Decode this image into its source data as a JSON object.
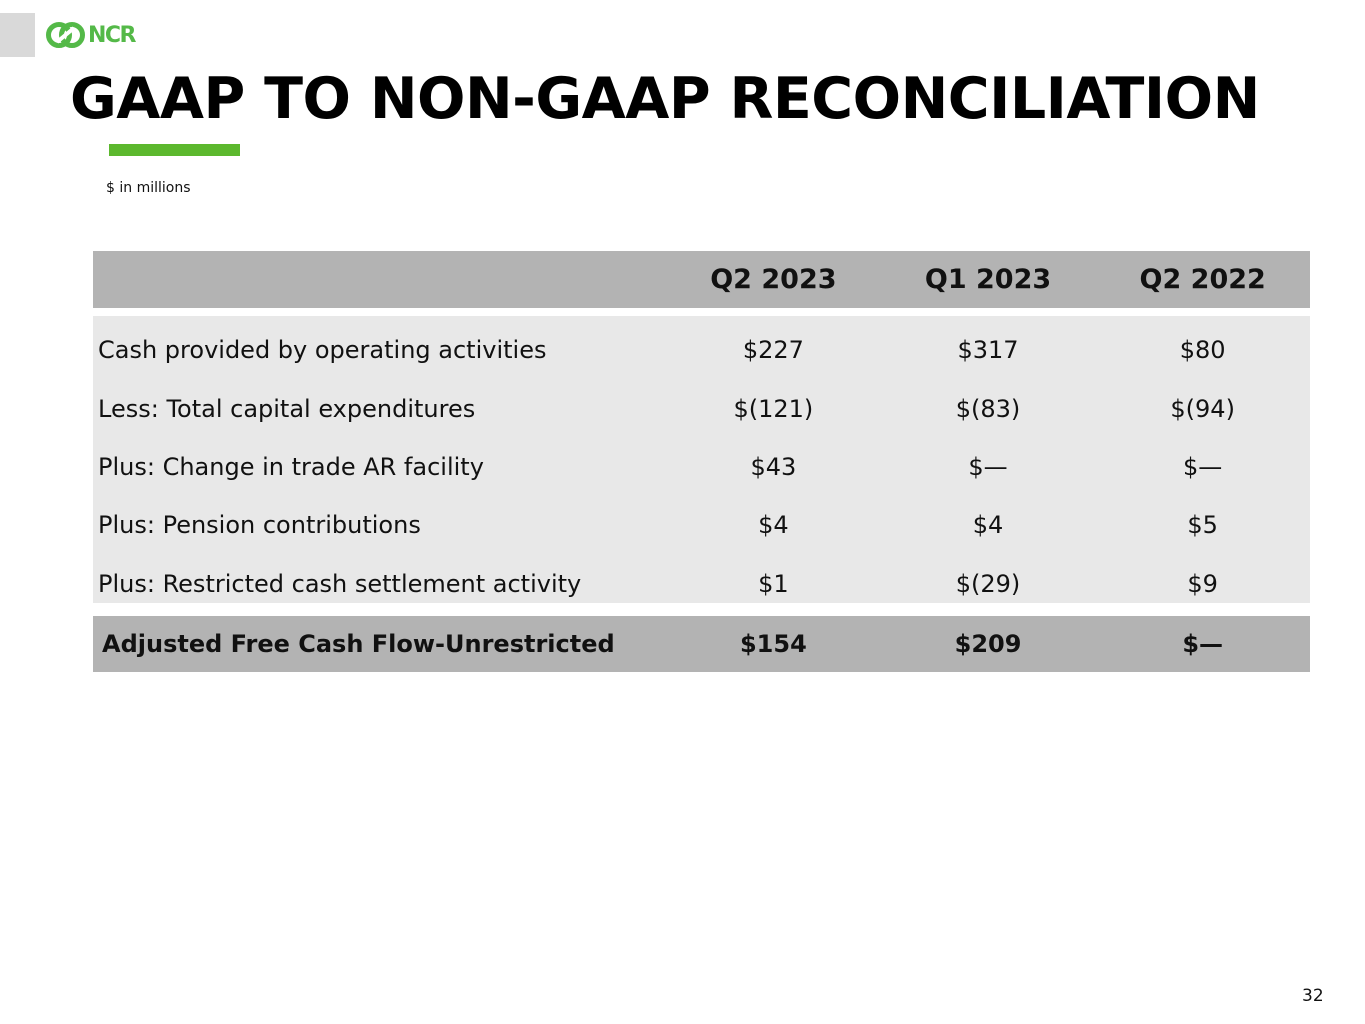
{
  "brand": {
    "logo_text": "NCR",
    "accent_color": "#5cb82e",
    "logo_color": "#54b948"
  },
  "slide": {
    "title": "GAAP TO NON-GAAP RECONCILIATION",
    "units_note": "$ in millions",
    "page_number": "32"
  },
  "table": {
    "columns": [
      "",
      "Q2 2023",
      "Q1 2023",
      "Q2 2022"
    ],
    "rows": [
      {
        "label": "Cash provided by operating activities",
        "values": [
          "$227",
          "$317",
          "$80"
        ]
      },
      {
        "label": "Less: Total capital expenditures",
        "values": [
          "$(121)",
          "$(83)",
          "$(94)"
        ]
      },
      {
        "label": "Plus: Change in trade AR facility",
        "values": [
          "$43",
          "$—",
          "$—"
        ]
      },
      {
        "label": "Plus: Pension contributions",
        "values": [
          "$4",
          "$4",
          "$5"
        ]
      },
      {
        "label": "Plus: Restricted cash settlement activity",
        "values": [
          "$1",
          "$(29)",
          "$9"
        ]
      }
    ],
    "total": {
      "label": "Adjusted Free Cash Flow-Unrestricted",
      "values": [
        "$154",
        "$209",
        "$—"
      ]
    }
  }
}
